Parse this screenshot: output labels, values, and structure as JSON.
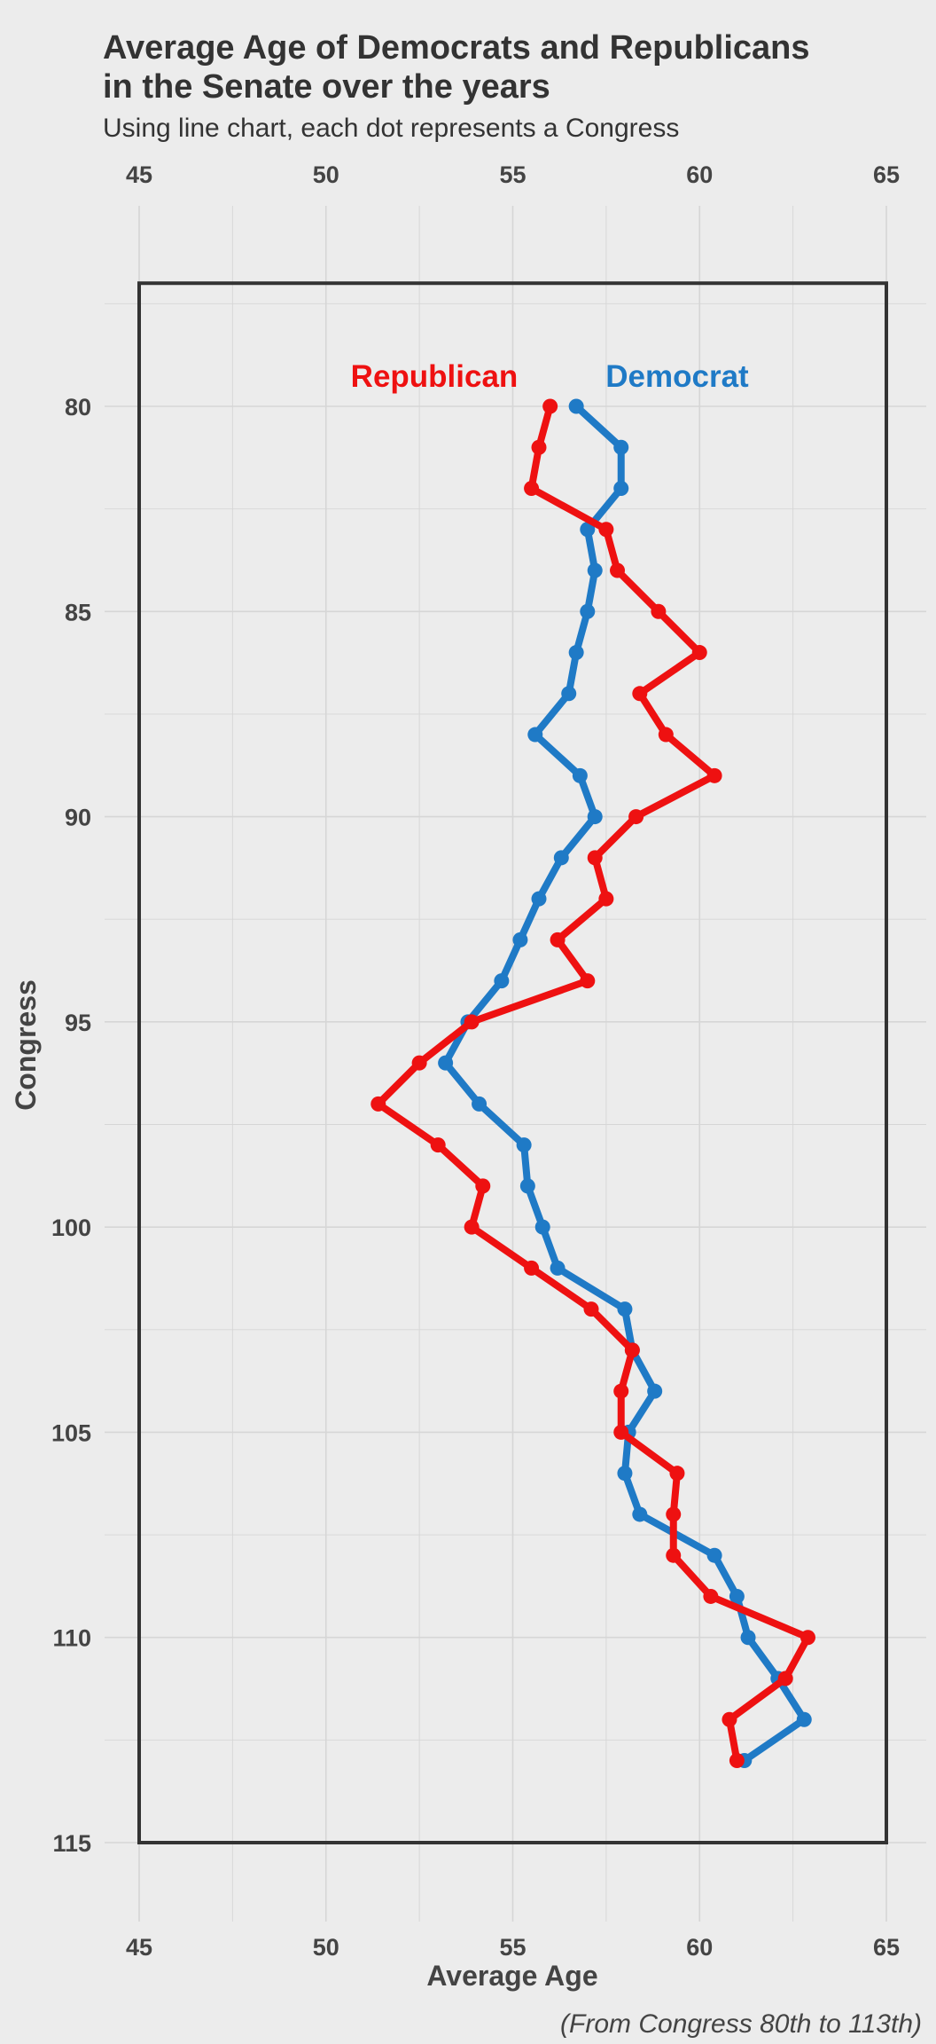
{
  "title_line1": "Average Age of Democrats and Republicans",
  "title_line2": "in the Senate over the years",
  "subtitle": "Using line chart, each dot represents a Congress",
  "caption": "(From Congress 80th to 113th)",
  "colors": {
    "republican": "#ee1111",
    "democrat": "#1f7ac6",
    "background": "#ececec",
    "grid": "#d6d6d6",
    "frame": "#333333"
  },
  "chart_data": {
    "type": "line",
    "title": "Average Age of Democrats and Republicans in the Senate over the years",
    "subtitle": "Using line chart, each dot represents a Congress",
    "xlabel": "Average Age",
    "ylabel": "Congress",
    "orientation": "vertical",
    "xlim": [
      45,
      65
    ],
    "ylim": [
      115,
      77
    ],
    "x_ticks": [
      45,
      50,
      55,
      60,
      65
    ],
    "y_ticks": [
      80,
      85,
      90,
      95,
      100,
      105,
      110,
      115
    ],
    "x_tick_labels_position": "top and bottom",
    "grid": true,
    "legend": "inline labels above lines",
    "congress": [
      80,
      81,
      82,
      83,
      84,
      85,
      86,
      87,
      88,
      89,
      90,
      91,
      92,
      93,
      94,
      95,
      96,
      97,
      98,
      99,
      100,
      101,
      102,
      103,
      104,
      105,
      106,
      107,
      108,
      109,
      110,
      111,
      112,
      113
    ],
    "series": [
      {
        "name": "Republican",
        "color": "#ee1111",
        "values": [
          56.0,
          55.7,
          55.5,
          57.5,
          57.8,
          58.9,
          60.0,
          58.4,
          59.1,
          60.4,
          58.3,
          57.2,
          57.5,
          56.2,
          57.0,
          53.9,
          52.5,
          51.4,
          53.0,
          54.2,
          53.9,
          55.5,
          57.1,
          58.2,
          57.9,
          57.9,
          59.4,
          59.3,
          59.3,
          60.3,
          62.9,
          62.3,
          60.8,
          61.0
        ]
      },
      {
        "name": "Democrat",
        "color": "#1f7ac6",
        "values": [
          56.7,
          57.9,
          57.9,
          57.0,
          57.2,
          57.0,
          56.7,
          56.5,
          55.6,
          56.8,
          57.2,
          56.3,
          55.7,
          55.2,
          54.7,
          53.8,
          53.2,
          54.1,
          55.3,
          55.4,
          55.8,
          56.2,
          58.0,
          58.2,
          58.8,
          58.1,
          58.0,
          58.4,
          60.4,
          61.0,
          61.3,
          62.1,
          62.8,
          61.2
        ]
      }
    ]
  }
}
